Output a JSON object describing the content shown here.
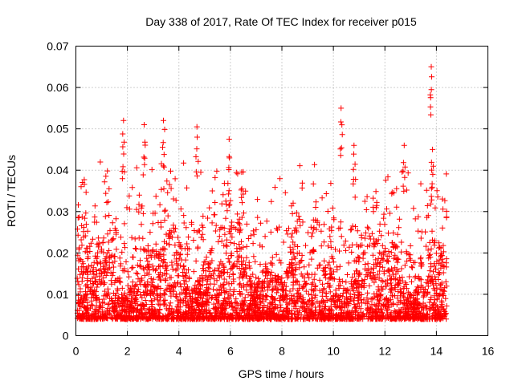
{
  "chart_data": {
    "type": "scatter",
    "title": "Day 338 of 2017, Rate Of TEC Index for receiver p015",
    "xlabel": "GPS time / hours",
    "ylabel": "ROTI / TECUs",
    "xlim": [
      0,
      16
    ],
    "ylim": [
      0,
      0.07
    ],
    "x_ticks": [
      0,
      2,
      4,
      6,
      8,
      10,
      12,
      14,
      16
    ],
    "y_ticks": [
      0,
      0.01,
      0.02,
      0.03,
      0.04,
      0.05,
      0.06,
      0.07
    ],
    "x_tick_labels": [
      "0",
      "2",
      "4",
      "6",
      "8",
      "10",
      "12",
      "14",
      "16"
    ],
    "y_tick_labels": [
      "0",
      "0.01",
      "0.02",
      "0.03",
      "0.04",
      "0.05",
      "0.06",
      "0.07"
    ],
    "grid": true,
    "marker": "+",
    "color": "#ff0000",
    "x_data_range": [
      0.05,
      14.4
    ],
    "typical_range": [
      0.004,
      0.02
    ],
    "notable_points": [
      {
        "x": 1.85,
        "y": 0.052
      },
      {
        "x": 2.65,
        "y": 0.051
      },
      {
        "x": 3.4,
        "y": 0.052
      },
      {
        "x": 4.7,
        "y": 0.0505
      },
      {
        "x": 5.95,
        "y": 0.0475
      },
      {
        "x": 10.3,
        "y": 0.055
      },
      {
        "x": 10.8,
        "y": 0.046
      },
      {
        "x": 12.75,
        "y": 0.046
      },
      {
        "x": 13.8,
        "y": 0.065
      },
      {
        "x": 13.85,
        "y": 0.045
      }
    ]
  }
}
